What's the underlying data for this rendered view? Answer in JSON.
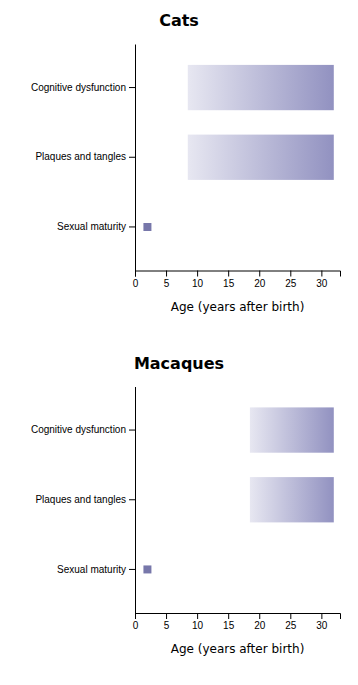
{
  "chart_data": [
    {
      "type": "bar",
      "orientation": "horizontal",
      "title": "Cats",
      "categories": [
        "Cognitive dysfunction",
        "Plaques and tangles",
        "Sexual maturity"
      ],
      "series": [
        {
          "type": "bar",
          "color": "#8888bb",
          "starts": [
            8.5,
            8.5,
            null
          ],
          "values": [
            32.0,
            32.0,
            null
          ]
        },
        {
          "type": "scatter",
          "marker": "square",
          "color": "#7777aa",
          "values": [
            null,
            null,
            2.0
          ]
        }
      ],
      "xlim": [
        0,
        33
      ],
      "xticks": [
        0,
        5,
        10,
        15,
        20,
        25,
        30
      ],
      "xlabel": "Age (years after birth)"
    },
    {
      "type": "bar",
      "orientation": "horizontal",
      "title": "Macaques",
      "categories": [
        "Cognitive dysfunction",
        "Plaques and tangles",
        "Sexual maturity"
      ],
      "series": [
        {
          "type": "bar",
          "color": "#8888bb",
          "starts": [
            18.5,
            18.5,
            null
          ],
          "values": [
            32.0,
            32.0,
            null
          ]
        },
        {
          "type": "scatter",
          "marker": "square",
          "color": "#7777aa",
          "values": [
            null,
            null,
            2.0
          ]
        }
      ],
      "xlim": [
        0,
        33
      ],
      "xticks": [
        0,
        5,
        10,
        15,
        20,
        25,
        30
      ],
      "xlabel": "Age (years after birth)"
    }
  ]
}
